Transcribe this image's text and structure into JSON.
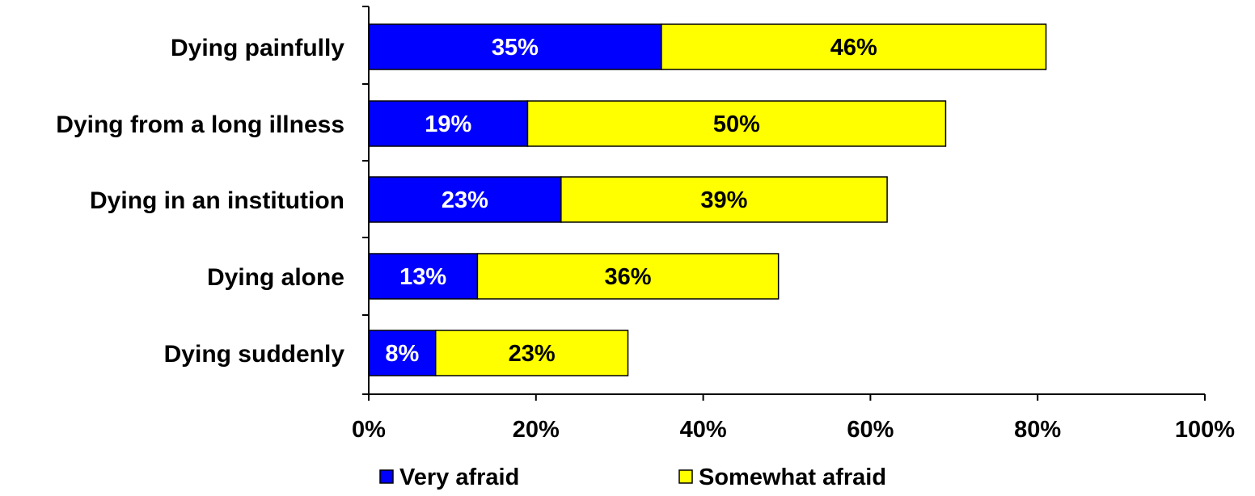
{
  "chart_data": {
    "type": "bar",
    "orientation": "horizontal",
    "stacked": true,
    "categories": [
      "Dying painfully",
      "Dying from a long illness",
      "Dying in an institution",
      "Dying alone",
      "Dying suddenly"
    ],
    "series": [
      {
        "name": "Very afraid",
        "color": "#0000ff",
        "label_color": "#ffffff",
        "values": [
          35,
          19,
          23,
          13,
          8
        ],
        "labels": [
          "35%",
          "19%",
          "23%",
          "13%",
          "8%"
        ]
      },
      {
        "name": "Somewhat afraid",
        "color": "#ffff00",
        "label_color": "#000000",
        "values": [
          46,
          50,
          39,
          36,
          23
        ],
        "labels": [
          "46%",
          "50%",
          "39%",
          "36%",
          "23%"
        ]
      }
    ],
    "xlim": [
      0,
      100
    ],
    "xticks": [
      0,
      20,
      40,
      60,
      80,
      100
    ],
    "xtick_labels": [
      "0%",
      "20%",
      "40%",
      "60%",
      "80%",
      "100%"
    ],
    "grid": false,
    "legend_position": "bottom"
  }
}
